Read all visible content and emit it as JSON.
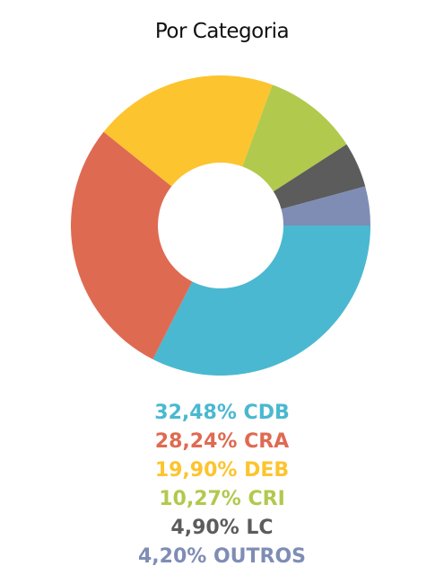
{
  "chart_data": {
    "type": "pie",
    "title": "Por Categoria",
    "categories": [
      "CDB",
      "CRA",
      "DEB",
      "CRI",
      "LC",
      "OUTROS"
    ],
    "values": [
      32.48,
      28.24,
      19.9,
      10.27,
      4.9,
      4.2
    ],
    "value_labels": [
      "32,48%",
      "28,24%",
      "19,90%",
      "10,27%",
      "4,90%",
      "4,20%"
    ],
    "colors": [
      "#4ab8d0",
      "#df6a52",
      "#fcc42e",
      "#b1c94d",
      "#5c5c5c",
      "#7f8db5"
    ],
    "donut": true,
    "legend_position": "bottom"
  }
}
